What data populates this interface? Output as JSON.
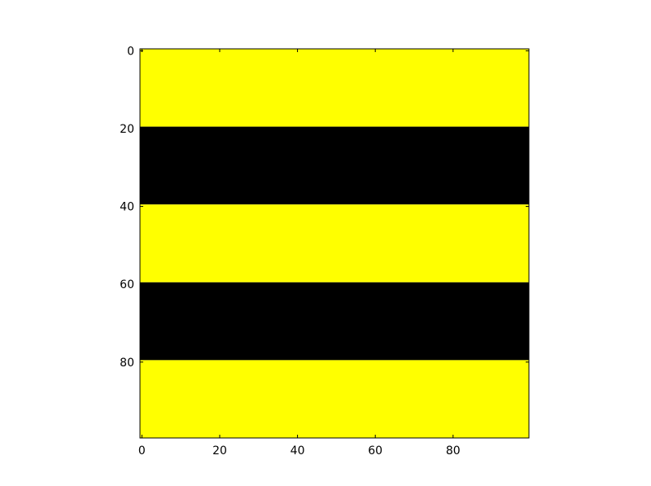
{
  "chart_data": {
    "type": "heatmap",
    "title": "",
    "xlabel": "",
    "ylabel": "",
    "colors": {
      "high": "#ffff00",
      "low": "#000000",
      "axes_edge": "#000000",
      "background": "#ffffff"
    },
    "x_extent": [
      -0.5,
      99.5
    ],
    "y_extent": [
      -0.5,
      99.5
    ],
    "y_inverted": true,
    "x_ticks": [
      0,
      20,
      40,
      60,
      80
    ],
    "x_tick_labels": [
      "0",
      "20",
      "40",
      "60",
      "80"
    ],
    "y_ticks": [
      0,
      20,
      40,
      60,
      80
    ],
    "y_tick_labels": [
      "0",
      "20",
      "40",
      "60",
      "80"
    ],
    "rows": 100,
    "cols": 100,
    "bands": [
      {
        "row_start": 0,
        "row_end": 19,
        "value": 1,
        "color": "#ffff00"
      },
      {
        "row_start": 20,
        "row_end": 39,
        "value": 0,
        "color": "#000000"
      },
      {
        "row_start": 40,
        "row_end": 59,
        "value": 1,
        "color": "#ffff00"
      },
      {
        "row_start": 60,
        "row_end": 79,
        "value": 0,
        "color": "#000000"
      },
      {
        "row_start": 80,
        "row_end": 99,
        "value": 1,
        "color": "#ffff00"
      }
    ],
    "grid": false,
    "legend": "none"
  }
}
